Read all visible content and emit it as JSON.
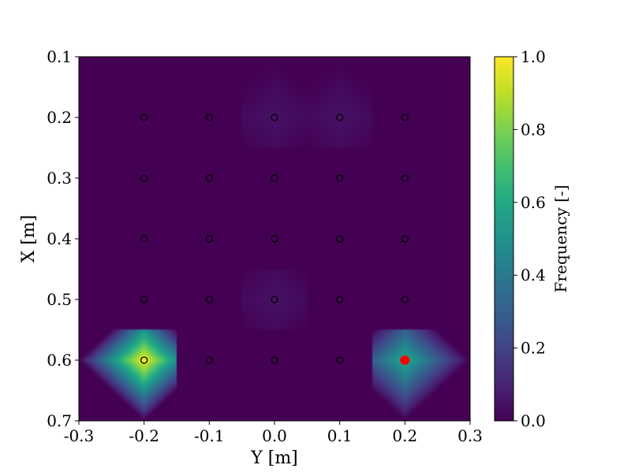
{
  "chart_data": {
    "type": "heatmap",
    "xlabel": "Y [m]",
    "ylabel": "X [m]",
    "colorbar_label": "Frequency [-]",
    "colormap": "viridis",
    "xlim": [
      -0.3,
      0.3
    ],
    "ylim": [
      0.1,
      0.7
    ],
    "y_inverted": true,
    "clim": [
      0.0,
      1.0
    ],
    "x_ticks": [
      "-0.3",
      "-0.2",
      "-0.1",
      "0.0",
      "0.1",
      "0.2",
      "0.3"
    ],
    "y_ticks": [
      "0.1",
      "0.2",
      "0.3",
      "0.4",
      "0.5",
      "0.6",
      "0.7"
    ],
    "colorbar_ticks": [
      "0.0",
      "0.2",
      "0.4",
      "0.6",
      "0.8",
      "1.0"
    ],
    "grid": {
      "x": [
        -0.2,
        -0.1,
        0.0,
        0.1,
        0.2
      ],
      "y": [
        0.2,
        0.3,
        0.4,
        0.5,
        0.6
      ],
      "values": [
        [
          0.0,
          0.0,
          0.05,
          0.05,
          0.0
        ],
        [
          0.0,
          0.0,
          0.0,
          0.0,
          0.0
        ],
        [
          0.0,
          0.0,
          0.0,
          0.0,
          0.0
        ],
        [
          0.0,
          0.0,
          0.05,
          0.0,
          0.0
        ],
        [
          1.0,
          0.0,
          0.0,
          0.0,
          0.6
        ]
      ]
    },
    "marker_color": "#000000",
    "highlight": {
      "y": 0.2,
      "x": 0.6,
      "color": "#ff0000"
    }
  }
}
